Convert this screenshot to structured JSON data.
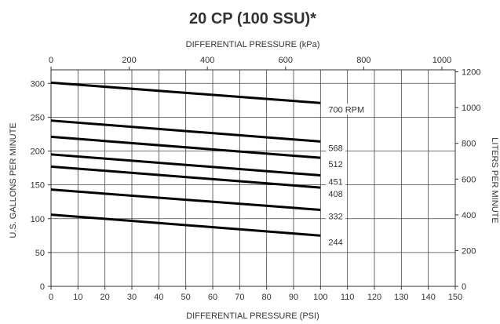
{
  "chart_data": {
    "type": "line",
    "title": "20 CP (100 SSU)*",
    "xlabel": "DIFFERENTIAL PRESSURE (PSI)",
    "x2label": "DIFFERENTIAL PRESSURE (kPa)",
    "ylabel": "U.S. GALLONS PER MINUTE",
    "y2label": "LITERS PER MINUTE",
    "xlim": [
      0,
      150
    ],
    "ylim": [
      0,
      320
    ],
    "x2lim": [
      0,
      1034.2
    ],
    "y2lim": [
      0,
      1211.3
    ],
    "xticks": [
      "0",
      "10",
      "20",
      "30",
      "40",
      "50",
      "60",
      "70",
      "80",
      "90",
      "100",
      "110",
      "120",
      "130",
      "140",
      "150"
    ],
    "yticks": [
      "0",
      "50",
      "100",
      "150",
      "200",
      "250",
      "300"
    ],
    "x2ticks": [
      "0",
      "200",
      "400",
      "600",
      "800",
      "1000"
    ],
    "y2ticks": [
      "0",
      "200",
      "400",
      "600",
      "800",
      "1000",
      "1200"
    ],
    "grid": true,
    "series": [
      {
        "name": "700 RPM",
        "x": [
          0,
          100
        ],
        "y": [
          301,
          271
        ]
      },
      {
        "name": "568",
        "x": [
          0,
          100
        ],
        "y": [
          245,
          214
        ]
      },
      {
        "name": "512",
        "x": [
          0,
          100
        ],
        "y": [
          221,
          190
        ]
      },
      {
        "name": "451",
        "x": [
          0,
          100
        ],
        "y": [
          195,
          164
        ]
      },
      {
        "name": "408",
        "x": [
          0,
          100
        ],
        "y": [
          177,
          146
        ]
      },
      {
        "name": "332",
        "x": [
          0,
          100
        ],
        "y": [
          143,
          113
        ]
      },
      {
        "name": "244",
        "x": [
          0,
          100
        ],
        "y": [
          106,
          75
        ]
      }
    ]
  }
}
